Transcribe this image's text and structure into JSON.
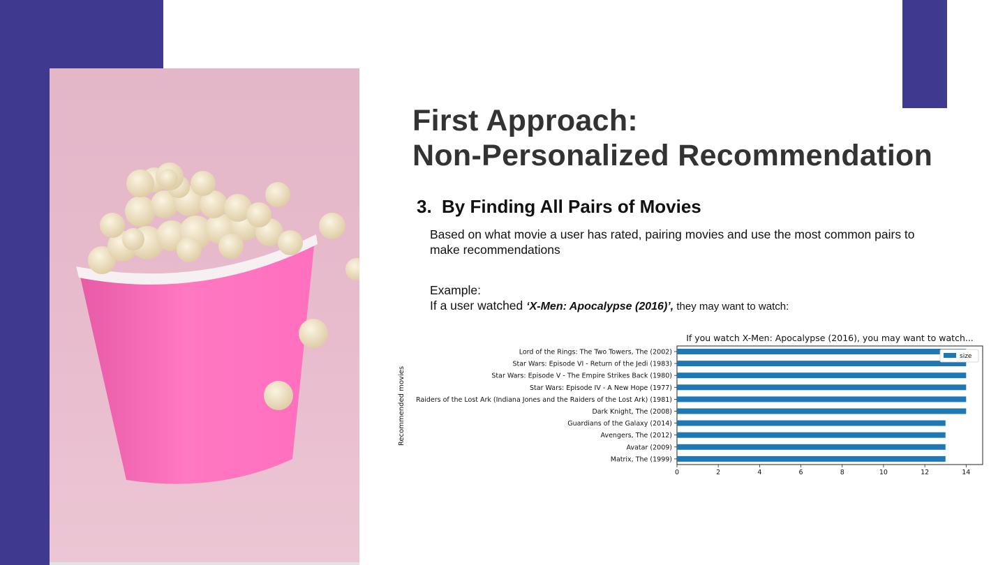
{
  "slide": {
    "title_line1": "First Approach:",
    "title_line2": "Non-Personalized Recommendation",
    "subheading_number": "3.",
    "subheading_text": "By Finding All Pairs of Movies",
    "description": "Based on what movie a user has rated, pairing movies and use the most common pairs to make recommendations",
    "example_label": "Example:",
    "example_prefix": "If a user watched ",
    "example_movie": "‘X-Men: Apocalypse (2016)’,",
    "example_suffix": " they may want to watch:"
  },
  "colors": {
    "accent": "#3f3a8f",
    "title_text": "#333333",
    "bar": "#1f77b4",
    "popcorn_bucket": "#ff6fbf",
    "photo_background": "#e6b9ca"
  },
  "photo": {
    "subject": "popcorn-bucket"
  },
  "chart_data": {
    "type": "bar",
    "orientation": "horizontal",
    "title": "If you watch X-Men: Apocalypse (2016), you may want to watch...",
    "ylabel": "Recommended movies",
    "xlabel": "",
    "categories": [
      "Lord of the Rings: The Two Towers, The (2002)",
      "Star Wars: Episode VI - Return of the Jedi (1983)",
      "Star Wars: Episode V - The Empire Strikes Back (1980)",
      "Star Wars: Episode IV - A New Hope (1977)",
      "Raiders of the Lost Ark (Indiana Jones and the Raiders of the Lost Ark) (1981)",
      "Dark Knight, The (2008)",
      "Guardians of the Galaxy (2014)",
      "Avengers, The (2012)",
      "Avatar (2009)",
      "Matrix, The (1999)"
    ],
    "series": [
      {
        "name": "size",
        "values": [
          14,
          14,
          14,
          14,
          14,
          14,
          13,
          13,
          13,
          13
        ]
      }
    ],
    "xlim": [
      0,
      14.8
    ],
    "xticks": [
      0,
      2,
      4,
      6,
      8,
      10,
      12,
      14
    ],
    "grid": false,
    "legend": "top-right"
  }
}
